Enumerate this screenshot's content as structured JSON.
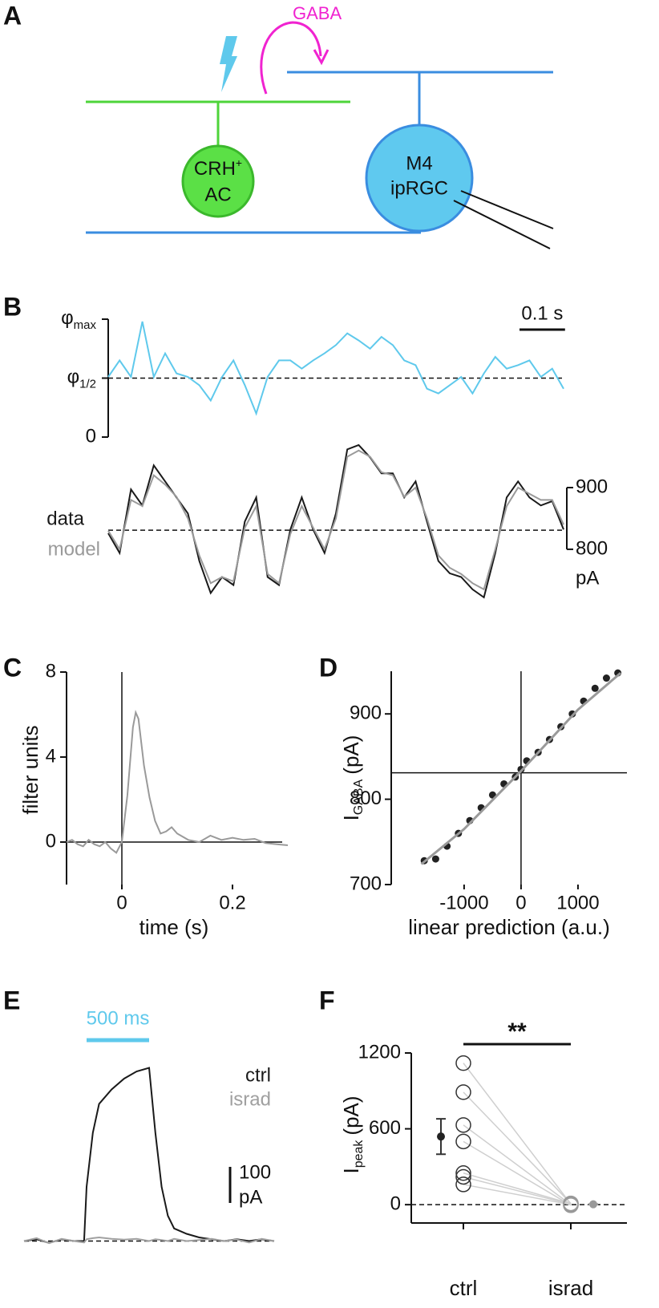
{
  "diagram": {
    "panel": "A",
    "transmitter": "GABA",
    "amacrine_cell": {
      "line1": "CRH",
      "sup": "+",
      "line2": "AC"
    },
    "ganglion_cell": {
      "line1": "M4",
      "line2": "ipRGC"
    }
  },
  "chart_data": [
    {
      "type": "line",
      "panel": "B",
      "color": "#5fc9ec",
      "x": [
        0,
        0.025,
        0.05,
        0.075,
        0.1,
        0.125,
        0.15,
        0.175,
        0.2,
        0.225,
        0.25,
        0.275,
        0.3,
        0.325,
        0.35,
        0.375,
        0.4,
        0.425,
        0.45,
        0.475,
        0.5,
        0.525,
        0.55,
        0.575,
        0.6,
        0.625,
        0.65,
        0.675,
        0.7,
        0.725,
        0.75,
        0.775,
        0.8,
        0.825,
        0.85,
        0.875,
        0.9,
        0.925,
        0.95,
        0.975,
        1
      ],
      "values": [
        0.51,
        0.65,
        0.51,
        0.98,
        0.51,
        0.71,
        0.54,
        0.51,
        0.44,
        0.31,
        0.51,
        0.65,
        0.44,
        0.2,
        0.51,
        0.65,
        0.65,
        0.58,
        0.65,
        0.71,
        0.78,
        0.88,
        0.82,
        0.75,
        0.85,
        0.78,
        0.65,
        0.61,
        0.41,
        0.37,
        0.44,
        0.51,
        0.37,
        0.54,
        0.68,
        0.58,
        0.61,
        0.65,
        0.51,
        0.58,
        0.41
      ],
      "xlim": [
        0,
        1
      ],
      "ylim": [
        0,
        1
      ],
      "yticks": [
        0,
        {
          "value": 0.5,
          "label": "φ",
          "sub": "1/2"
        },
        {
          "value": 1,
          "label": "φ",
          "sub": "max"
        }
      ],
      "reference_line": 0.5,
      "scale_bar": {
        "value": 0.1,
        "label": "0.1 s"
      }
    },
    {
      "type": "line",
      "x": [
        0,
        0.025,
        0.05,
        0.075,
        0.1,
        0.125,
        0.15,
        0.175,
        0.2,
        0.225,
        0.25,
        0.275,
        0.3,
        0.325,
        0.35,
        0.375,
        0.4,
        0.425,
        0.45,
        0.475,
        0.5,
        0.525,
        0.55,
        0.575,
        0.6,
        0.625,
        0.65,
        0.675,
        0.7,
        0.725,
        0.75,
        0.775,
        0.8,
        0.825,
        0.85,
        0.875,
        0.9,
        0.925,
        0.95,
        0.975,
        1
      ],
      "series": [
        {
          "name": "data",
          "color": "#1a1a1a",
          "values": [
            826,
            794,
            897,
            871,
            936,
            910,
            884,
            858,
            781,
            729,
            755,
            742,
            845,
            884,
            755,
            742,
            832,
            884,
            832,
            794,
            858,
            962,
            969,
            949,
            923,
            923,
            884,
            910,
            845,
            781,
            761,
            755,
            735,
            722,
            794,
            884,
            910,
            884,
            871,
            878,
            832
          ]
        },
        {
          "name": "model",
          "color": "#9a9a9a",
          "values": [
            830,
            800,
            880,
            870,
            920,
            905,
            885,
            850,
            790,
            745,
            755,
            748,
            835,
            870,
            760,
            745,
            825,
            870,
            835,
            800,
            850,
            950,
            960,
            950,
            925,
            920,
            885,
            900,
            850,
            790,
            770,
            760,
            745,
            735,
            800,
            870,
            900,
            890,
            880,
            880,
            840
          ]
        }
      ],
      "xlim": [
        0,
        1
      ],
      "ylim": [
        705,
        978
      ],
      "yticks": [
        800,
        900
      ],
      "y_unit": "pA",
      "reference_line": 831
    },
    {
      "type": "line",
      "panel": "C",
      "color": "#9a9a9a",
      "xlabel": "time (s)",
      "ylabel": "filter units",
      "x": [
        -0.1,
        -0.09,
        -0.08,
        -0.07,
        -0.06,
        -0.05,
        -0.04,
        -0.03,
        -0.02,
        -0.01,
        0,
        0.01,
        0.02,
        0.025,
        0.03,
        0.04,
        0.05,
        0.06,
        0.07,
        0.08,
        0.09,
        0.1,
        0.12,
        0.14,
        0.16,
        0.18,
        0.2,
        0.22,
        0.24,
        0.26,
        0.28,
        0.3
      ],
      "values": [
        0,
        0.1,
        -0.1,
        -0.2,
        0.1,
        -0.1,
        -0.2,
        0,
        -0.3,
        -0.5,
        0,
        2.2,
        5.4,
        6.1,
        5.8,
        3.6,
        2.1,
        1,
        0.4,
        0.5,
        0.7,
        0.4,
        0.1,
        0,
        0.3,
        0.1,
        0.2,
        0.1,
        0.15,
        -0.05,
        -0.1,
        -0.15
      ],
      "xlim": [
        -0.1,
        0.3
      ],
      "ylim": [
        -2,
        8
      ],
      "xticks": [
        0,
        0.2
      ],
      "yticks": [
        0,
        4,
        8
      ]
    },
    {
      "type": "scatter",
      "panel": "D",
      "color": "#222222",
      "xlabel": "linear prediction (a.u.)",
      "ylabel": {
        "text": "I",
        "sub": "GABA",
        "unit": "(pA)"
      },
      "x": [
        -1700,
        -1500,
        -1300,
        -1100,
        -900,
        -700,
        -500,
        -300,
        -100,
        0,
        100,
        300,
        500,
        700,
        900,
        1100,
        1300,
        1500,
        1700
      ],
      "values": [
        728,
        730,
        745,
        760,
        775,
        790,
        805,
        818,
        826,
        835,
        845,
        855,
        870,
        885,
        900,
        915,
        930,
        942,
        948
      ],
      "fit": {
        "color": "#9a9a9a",
        "x": [
          -1750,
          -1000,
          0,
          1000,
          1750
        ],
        "values": [
          724,
          765,
          833,
          905,
          948
        ]
      },
      "xlim": [
        -2280,
        1860
      ],
      "ylim": [
        700,
        950
      ],
      "xticks": [
        -1000,
        0,
        1000
      ],
      "yticks": [
        700,
        800,
        900
      ],
      "reference_lines": {
        "x": 0,
        "y": 831
      }
    },
    {
      "type": "line",
      "panel": "E",
      "x": [
        0,
        100,
        200,
        300,
        400,
        480,
        500,
        550,
        600,
        700,
        800,
        900,
        1000,
        1050,
        1100,
        1150,
        1200,
        1300,
        1400,
        1500,
        1600,
        1700,
        1800,
        1900,
        2000
      ],
      "series": [
        {
          "name": "ctrl",
          "color": "#1a1a1a",
          "values": [
            0,
            5,
            -5,
            5,
            0,
            0,
            150,
            300,
            380,
            420,
            450,
            470,
            480,
            300,
            150,
            70,
            35,
            20,
            10,
            5,
            0,
            5,
            0,
            5,
            0
          ]
        },
        {
          "name": "israd",
          "color": "#a0a0a0",
          "values": [
            0,
            8,
            -6,
            6,
            0,
            -4,
            5,
            8,
            10,
            6,
            4,
            6,
            0,
            5,
            3,
            0,
            6,
            0,
            3,
            6,
            0,
            4,
            -4,
            6,
            0
          ]
        }
      ],
      "xlim": [
        0,
        2000
      ],
      "ylim": [
        -30,
        550
      ],
      "stimulus": {
        "start": 500,
        "duration": {
          "value": 500,
          "label": "500 ms"
        },
        "color": "#5fc9ec"
      },
      "scale_bar": {
        "value": 100,
        "label": "100",
        "unit": "pA"
      },
      "reference_line": 0
    },
    {
      "type": "paired_dot",
      "panel": "F",
      "ylabel": {
        "text": "I",
        "sub": "peak",
        "unit": "(pA)"
      },
      "categories": [
        "ctrl",
        "israd"
      ],
      "groups": [
        {
          "color": "#333333",
          "values": [
            1120,
            890,
            630,
            500,
            250,
            220,
            160
          ],
          "mean": 539,
          "error": 140
        },
        {
          "color": "#999999",
          "values": [
            5,
            10,
            0,
            -5,
            8,
            3,
            0
          ],
          "mean": 3,
          "error": 2
        }
      ],
      "ylim": [
        -145,
        1200
      ],
      "yticks": [
        0,
        600,
        1200
      ],
      "significance": "**",
      "reference_line": 0
    }
  ]
}
